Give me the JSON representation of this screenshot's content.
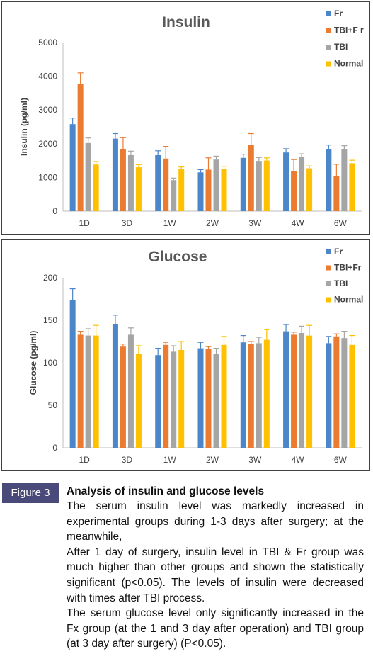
{
  "chart_data": [
    {
      "type": "bar",
      "title": "Insulin",
      "ylabel": "Insulin (pg/ml)",
      "xlabel": "",
      "ylim": [
        0,
        5000
      ],
      "yticks": [
        "0",
        "1000",
        "2000",
        "3000",
        "4000",
        "5000"
      ],
      "categories": [
        "1D",
        "3D",
        "1W",
        "2W",
        "3W",
        "4W",
        "6W"
      ],
      "legend_position": "top-right",
      "grid": false,
      "series": [
        {
          "name": "Fr",
          "color": "#4a86c8",
          "values": [
            2580,
            2150,
            1660,
            1150,
            1580,
            1740,
            1840
          ],
          "errors": [
            180,
            150,
            130,
            80,
            110,
            110,
            120
          ]
        },
        {
          "name": "TBI+F r",
          "color": "#ec7b32",
          "values": [
            3760,
            1830,
            1560,
            1230,
            1960,
            1180,
            1040
          ],
          "errors": [
            340,
            350,
            360,
            350,
            340,
            350,
            350
          ]
        },
        {
          "name": "TBI",
          "color": "#a5a5a5",
          "values": [
            2020,
            1660,
            920,
            1530,
            1490,
            1600,
            1840
          ],
          "errors": [
            150,
            120,
            60,
            100,
            100,
            100,
            100
          ]
        },
        {
          "name": "Normal",
          "color": "#ffc000",
          "values": [
            1380,
            1300,
            1240,
            1250,
            1500,
            1270,
            1420
          ],
          "errors": [
            90,
            80,
            70,
            80,
            80,
            70,
            90
          ]
        }
      ]
    },
    {
      "type": "bar",
      "title": "Glucose",
      "ylabel": "Glucose (pg/ml)",
      "xlabel": "",
      "ylim": [
        0,
        200
      ],
      "yticks": [
        "0",
        "50",
        "100",
        "150",
        "200"
      ],
      "categories": [
        "1D",
        "3D",
        "1W",
        "2W",
        "3W",
        "4W",
        "6W"
      ],
      "legend_position": "top-right",
      "grid": false,
      "series": [
        {
          "name": "Fr",
          "color": "#4a86c8",
          "values": [
            174,
            145,
            109,
            117,
            124,
            137,
            123
          ],
          "errors": [
            13,
            11,
            8,
            7,
            8,
            8,
            8
          ]
        },
        {
          "name": "TBI+Fr",
          "color": "#ec7b32",
          "values": [
            133,
            119,
            121,
            116,
            122,
            133,
            131
          ],
          "errors": [
            4,
            3,
            3,
            3,
            3,
            3,
            3
          ]
        },
        {
          "name": "TBI",
          "color": "#a5a5a5",
          "values": [
            132,
            133,
            113,
            110,
            123,
            135,
            129
          ],
          "errors": [
            8,
            8,
            7,
            7,
            7,
            8,
            8
          ]
        },
        {
          "name": "Normal",
          "color": "#ffc000",
          "values": [
            132,
            110,
            115,
            121,
            127,
            132,
            121
          ],
          "errors": [
            12,
            10,
            10,
            10,
            12,
            12,
            11
          ]
        }
      ]
    }
  ],
  "figure": {
    "label": "Figure 3",
    "title": "Analysis of insulin and glucose levels",
    "paragraphs": [
      "The serum insulin level was markedly increased in experimental groups during 1-3 days after surgery; at the meanwhile,",
      "After 1 day of surgery, insulin level in TBI & Fr group was much higher than other groups and shown the statistically significant (p<0.05). The levels of insulin were decreased with times after TBI process.",
      "The serum glucose level only significantly increased in the Fx group (at the 1 and 3 day after operation) and TBI group (at 3 day after surgery) (P<0.05)."
    ],
    "badge_color": "#4a4a7a"
  }
}
